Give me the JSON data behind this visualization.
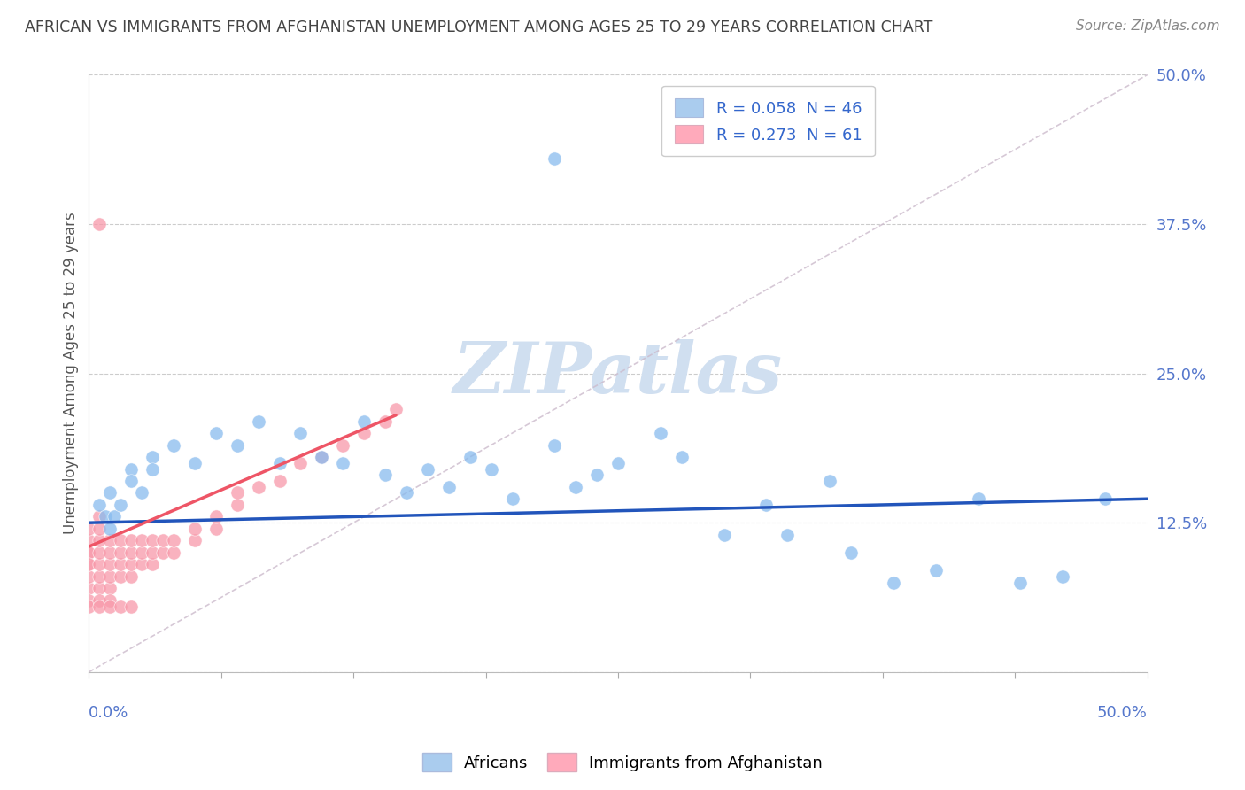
{
  "title": "AFRICAN VS IMMIGRANTS FROM AFGHANISTAN UNEMPLOYMENT AMONG AGES 25 TO 29 YEARS CORRELATION CHART",
  "source": "Source: ZipAtlas.com",
  "ylabel": "Unemployment Among Ages 25 to 29 years",
  "xlim": [
    0.0,
    0.5
  ],
  "ylim": [
    0.0,
    0.5
  ],
  "yticks": [
    0.0,
    0.125,
    0.25,
    0.375,
    0.5
  ],
  "ytick_labels": [
    "",
    "12.5%",
    "25.0%",
    "37.5%",
    "50.0%"
  ],
  "background_color": "#ffffff",
  "watermark": "ZIPatlas",
  "watermark_color": "#d0dff0",
  "africans_color": "#88bbee",
  "africans_edge": "#6699cc",
  "afghanistan_color": "#f899aa",
  "afghanistan_edge": "#dd6677",
  "trend_africans_color": "#2255bb",
  "trend_afghanistan_color": "#ee5566",
  "diagonal_color": "#ccbbcc",
  "legend_box_africans": "#aaccee",
  "legend_box_afghanistan": "#ffaabb",
  "title_color": "#444444",
  "source_color": "#888888",
  "axis_tick_color": "#5577cc",
  "africans_x": [
    0.005,
    0.008,
    0.01,
    0.01,
    0.012,
    0.015,
    0.02,
    0.02,
    0.025,
    0.03,
    0.03,
    0.04,
    0.05,
    0.06,
    0.07,
    0.08,
    0.09,
    0.1,
    0.11,
    0.12,
    0.13,
    0.14,
    0.15,
    0.16,
    0.17,
    0.18,
    0.19,
    0.2,
    0.22,
    0.23,
    0.24,
    0.25,
    0.27,
    0.28,
    0.3,
    0.32,
    0.33,
    0.35,
    0.36,
    0.38,
    0.4,
    0.42,
    0.44,
    0.46,
    0.48,
    0.22
  ],
  "africans_y": [
    0.14,
    0.13,
    0.15,
    0.12,
    0.13,
    0.14,
    0.17,
    0.16,
    0.15,
    0.18,
    0.17,
    0.19,
    0.175,
    0.2,
    0.19,
    0.21,
    0.175,
    0.2,
    0.18,
    0.175,
    0.21,
    0.165,
    0.15,
    0.17,
    0.155,
    0.18,
    0.17,
    0.145,
    0.19,
    0.155,
    0.165,
    0.175,
    0.2,
    0.18,
    0.115,
    0.14,
    0.115,
    0.16,
    0.1,
    0.075,
    0.085,
    0.145,
    0.075,
    0.08,
    0.145,
    0.43
  ],
  "afghanistan_x": [
    0.0,
    0.0,
    0.0,
    0.0,
    0.0,
    0.0,
    0.0,
    0.0,
    0.0,
    0.0,
    0.005,
    0.005,
    0.005,
    0.005,
    0.005,
    0.005,
    0.005,
    0.005,
    0.005,
    0.01,
    0.01,
    0.01,
    0.01,
    0.01,
    0.01,
    0.01,
    0.015,
    0.015,
    0.015,
    0.015,
    0.015,
    0.02,
    0.02,
    0.02,
    0.02,
    0.02,
    0.025,
    0.025,
    0.025,
    0.03,
    0.03,
    0.03,
    0.035,
    0.035,
    0.04,
    0.04,
    0.05,
    0.05,
    0.06,
    0.06,
    0.07,
    0.07,
    0.08,
    0.09,
    0.1,
    0.11,
    0.12,
    0.13,
    0.14,
    0.145,
    0.005
  ],
  "afghanistan_y": [
    0.07,
    0.08,
    0.09,
    0.1,
    0.11,
    0.06,
    0.12,
    0.055,
    0.1,
    0.09,
    0.07,
    0.08,
    0.09,
    0.1,
    0.11,
    0.06,
    0.12,
    0.13,
    0.055,
    0.07,
    0.08,
    0.09,
    0.1,
    0.11,
    0.06,
    0.055,
    0.08,
    0.09,
    0.1,
    0.11,
    0.055,
    0.08,
    0.09,
    0.1,
    0.11,
    0.055,
    0.09,
    0.1,
    0.11,
    0.09,
    0.1,
    0.11,
    0.1,
    0.11,
    0.1,
    0.11,
    0.11,
    0.12,
    0.12,
    0.13,
    0.14,
    0.15,
    0.155,
    0.16,
    0.175,
    0.18,
    0.19,
    0.2,
    0.21,
    0.22,
    0.375
  ]
}
